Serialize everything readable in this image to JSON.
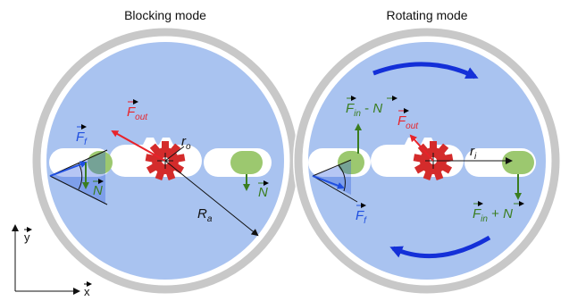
{
  "titles": {
    "left": "Blocking mode",
    "right": "Rotating mode"
  },
  "axes": {
    "x": "x",
    "y": "y"
  },
  "left_labels": {
    "F_out": "F",
    "F_out_sub": "out",
    "F_f": "F",
    "F_f_sub": "f",
    "N_left": "N",
    "N_right": "N",
    "r_o": "r",
    "r_o_sub": "o",
    "R_a": "R",
    "R_a_sub": "a"
  },
  "right_labels": {
    "F_in_minus_N": "F",
    "F_in_minus_N_sub": "in",
    "F_in_minus_N_op": " - ",
    "F_in_minus_N_N": "N",
    "F_out": "F",
    "F_out_sub": "out",
    "r_i": "r",
    "r_i_sub": "i",
    "F_f": "F",
    "F_f_sub": "f",
    "F_in_plus_N": "F",
    "F_in_plus_N_sub": "in",
    "F_in_plus_N_op": " + ",
    "F_in_plus_N_N": "N"
  },
  "colors": {
    "ring": "#c8c8c8",
    "disk": "#a9c3f0",
    "slot": "#ffffff",
    "pin": "#9cc86f",
    "gear": "#d42b2b",
    "out_force": "#e8232a",
    "friction": "#1f4fe0",
    "normal": "#3a7d1f",
    "rotation": "#1430d8"
  }
}
